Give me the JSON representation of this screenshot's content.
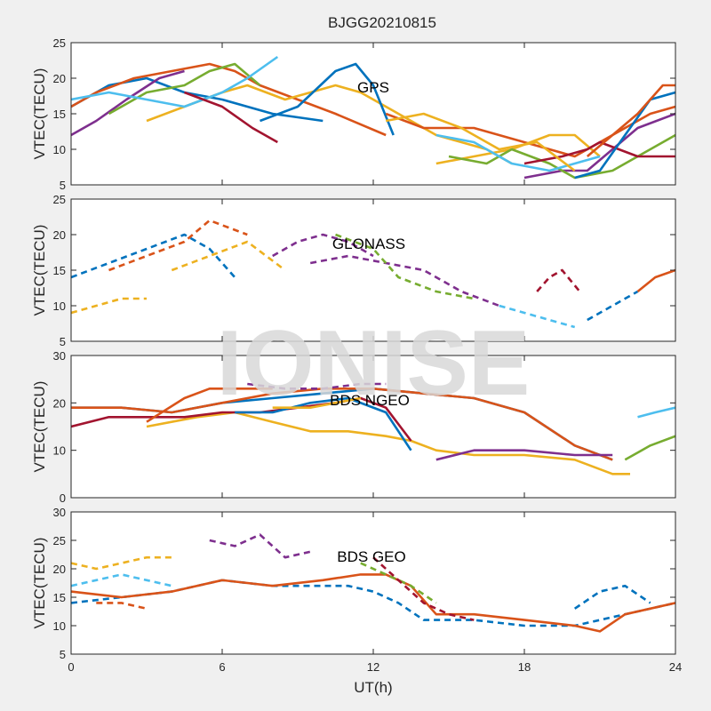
{
  "figure": {
    "title": "BJGG20210815",
    "watermark": "IONISE",
    "xlabel": "UT(h)",
    "x_ticks": [
      0,
      6,
      12,
      18,
      24
    ],
    "xlim": [
      0,
      24
    ]
  },
  "colors": {
    "background": "#f0f0f0",
    "axes_face": "#ffffff",
    "axis": "#262626",
    "watermark": "#d9d9d9",
    "palette": [
      "#0072bd",
      "#d95319",
      "#edb120",
      "#7e2f8e",
      "#77ac30",
      "#4dbeee",
      "#a2142f"
    ]
  },
  "chart_data": [
    {
      "type": "line",
      "title": "GPS",
      "ylabel": "VTEC(TECU)",
      "ylim": [
        5,
        25
      ],
      "y_ticks": [
        5,
        10,
        15,
        20,
        25
      ],
      "series": [
        {
          "x": [
            0,
            1.5,
            3,
            4.5,
            6,
            8,
            10
          ],
          "y": [
            16,
            19,
            20,
            18,
            17,
            15,
            14
          ]
        },
        {
          "x": [
            0,
            1,
            2.5,
            4,
            5.5,
            6.5,
            7.5,
            9,
            10.5,
            12.5
          ],
          "y": [
            16,
            18,
            20,
            21,
            22,
            21,
            19,
            17,
            15,
            12
          ]
        },
        {
          "x": [
            3,
            4.5,
            6,
            7,
            8.5,
            9.5,
            10.5,
            11.5,
            12.5,
            13.5,
            14.5,
            15.5,
            16.5,
            17.5
          ],
          "y": [
            14,
            16,
            18,
            19,
            17,
            18,
            19,
            18,
            16,
            14,
            12,
            11,
            10,
            8
          ]
        },
        {
          "x": [
            0,
            1,
            2.2,
            3.5,
            4.5
          ],
          "y": [
            12,
            14,
            17,
            20,
            21
          ]
        },
        {
          "x": [
            1.5,
            3,
            4.5,
            5.5,
            6.5,
            7.5
          ],
          "y": [
            15,
            18,
            19,
            21,
            22,
            19
          ]
        },
        {
          "x": [
            0,
            1.5,
            3,
            4.5,
            6,
            7,
            8.2
          ],
          "y": [
            17,
            18,
            17,
            16,
            18,
            20,
            23
          ]
        },
        {
          "x": [
            4.5,
            6,
            7.2,
            8.2
          ],
          "y": [
            18,
            16,
            13,
            11
          ]
        },
        {
          "x": [
            7.5,
            9,
            10.5,
            11.3,
            12,
            12.8
          ],
          "y": [
            14,
            16,
            21,
            22,
            19,
            12
          ]
        },
        {
          "x": [
            12.5,
            14,
            16,
            18,
            19,
            20,
            21,
            22,
            23,
            24
          ],
          "y": [
            15,
            13,
            13,
            11,
            10,
            9,
            11,
            13,
            15,
            16
          ]
        },
        {
          "x": [
            14.5,
            16,
            17.5,
            19,
            20,
            21
          ],
          "y": [
            8,
            9,
            10,
            12,
            12,
            9
          ]
        },
        {
          "x": [
            18,
            19.5,
            20.5,
            21.5,
            22.5,
            24
          ],
          "y": [
            6,
            7,
            7,
            10,
            13,
            15
          ]
        },
        {
          "x": [
            15,
            16.5,
            17.5,
            19,
            20,
            21.5,
            23,
            24
          ],
          "y": [
            9,
            8,
            10,
            8,
            6,
            7,
            10,
            12
          ]
        },
        {
          "x": [
            14.5,
            16,
            17.5,
            19,
            20,
            21
          ],
          "y": [
            12,
            11,
            8,
            7,
            8,
            9
          ]
        },
        {
          "x": [
            18,
            19.5,
            20.5,
            21,
            22.5,
            24
          ],
          "y": [
            8,
            9,
            10,
            11,
            9,
            9
          ]
        },
        {
          "x": [
            20,
            21,
            22,
            23,
            24
          ],
          "y": [
            6,
            7,
            12,
            17,
            18
          ]
        },
        {
          "x": [
            20.5,
            21.5,
            22.5,
            23.5,
            24
          ],
          "y": [
            9,
            12,
            15,
            19,
            19
          ]
        },
        {
          "x": [
            12.5,
            14,
            15.5,
            17,
            18.5,
            20
          ],
          "y": [
            14,
            15,
            13,
            10,
            11,
            7
          ]
        }
      ]
    },
    {
      "type": "line",
      "title": "GLONASS",
      "ylabel": "VTEC(TECU)",
      "ylim": [
        5,
        25
      ],
      "y_ticks": [
        5,
        10,
        15,
        20,
        25
      ],
      "series": [
        {
          "x": [
            0,
            1.5,
            3,
            4.5,
            5.5,
            6.5
          ],
          "y": [
            14,
            16,
            18,
            20,
            18,
            14
          ],
          "dashed": true
        },
        {
          "x": [
            1.5,
            3,
            4.5,
            5.5,
            7
          ],
          "y": [
            15,
            17,
            19,
            22,
            20
          ],
          "dashed": true
        },
        {
          "x": [
            4,
            5.5,
            7,
            8.5
          ],
          "y": [
            15,
            17,
            19,
            15
          ],
          "dashed": true
        },
        {
          "x": [
            9.5,
            11,
            12.5,
            14,
            15.5,
            17
          ],
          "y": [
            16,
            17,
            16,
            15,
            12,
            10
          ],
          "dashed": true
        },
        {
          "x": [
            10.5,
            12,
            13,
            14.5,
            16
          ],
          "y": [
            20,
            18,
            14,
            12,
            11
          ],
          "dashed": true
        },
        {
          "x": [
            17,
            18,
            19,
            20
          ],
          "y": [
            10,
            9,
            8,
            7
          ],
          "dashed": true
        },
        {
          "x": [
            18.5,
            19,
            19.5,
            20.2
          ],
          "y": [
            12,
            14,
            15,
            12
          ],
          "dashed": true
        },
        {
          "x": [
            20.5,
            21.5,
            22.5
          ],
          "y": [
            8,
            10,
            12
          ],
          "dashed": true
        },
        {
          "x": [
            22.5,
            23.2,
            24
          ],
          "y": [
            12,
            14,
            15
          ]
        },
        {
          "x": [
            0,
            1,
            2,
            3
          ],
          "y": [
            9,
            10,
            11,
            11
          ],
          "dashed": true
        },
        {
          "x": [
            8,
            9,
            10,
            11,
            12
          ],
          "y": [
            17,
            19,
            20,
            19,
            17
          ],
          "dashed": true
        }
      ]
    },
    {
      "type": "line",
      "title": "BDS NGEO",
      "ylabel": "VTEC(TECU)",
      "ylim": [
        0,
        30
      ],
      "y_ticks": [
        0,
        10,
        20,
        30
      ],
      "series": [
        {
          "x": [
            0,
            2,
            4,
            6,
            8,
            10,
            12,
            14,
            16,
            18,
            20,
            21.5
          ],
          "y": [
            19,
            19,
            18,
            20,
            21,
            22,
            23,
            22,
            21,
            18,
            11,
            8
          ]
        },
        {
          "x": [
            0,
            2,
            4,
            6,
            8,
            10,
            12,
            14,
            16,
            18,
            20,
            21.5
          ],
          "y": [
            19,
            19,
            18,
            20,
            22,
            23,
            23,
            22,
            21,
            18,
            11,
            8
          ]
        },
        {
          "x": [
            3,
            5,
            6.5,
            8,
            9.5,
            11,
            12.5,
            13.5,
            14.5,
            16,
            18,
            20,
            21.5,
            22.2
          ],
          "y": [
            15,
            17,
            18,
            16,
            14,
            14,
            13,
            12,
            10,
            9,
            9,
            8,
            5,
            5
          ]
        },
        {
          "x": [
            14.5,
            16,
            18,
            20,
            21.5
          ],
          "y": [
            8,
            10,
            10,
            9,
            9
          ]
        },
        {
          "x": [
            22,
            23,
            24
          ],
          "y": [
            8,
            11,
            13
          ]
        },
        {
          "x": [
            22.5,
            23.2,
            24
          ],
          "y": [
            17,
            18,
            19
          ]
        },
        {
          "x": [
            0,
            1.5,
            3,
            4.5,
            6,
            7.5,
            9,
            10.5,
            11.5,
            12.5,
            13.5
          ],
          "y": [
            15,
            17,
            17,
            17,
            18,
            18,
            19,
            20,
            21,
            19,
            12
          ]
        },
        {
          "x": [
            6.5,
            8,
            9.5,
            11,
            12.5,
            13.5
          ],
          "y": [
            18,
            18,
            20,
            21,
            18,
            10
          ]
        },
        {
          "x": [
            3,
            4.5,
            5.5,
            6.5,
            8
          ],
          "y": [
            16,
            21,
            23,
            23,
            23
          ]
        },
        {
          "x": [
            8,
            9.5,
            10.5,
            11.5
          ],
          "y": [
            19,
            19,
            20,
            21
          ]
        },
        {
          "x": [
            7,
            8.5,
            10,
            11.5,
            12.5
          ],
          "y": [
            24,
            23,
            23,
            24,
            24
          ],
          "dashed": true
        }
      ]
    },
    {
      "type": "line",
      "title": "BDS GEO",
      "ylabel": "VTEC(TECU)",
      "ylim": [
        5,
        30
      ],
      "y_ticks": [
        5,
        10,
        15,
        20,
        25,
        30
      ],
      "series": [
        {
          "x": [
            0,
            2,
            4,
            6,
            8,
            10,
            11,
            12,
            13,
            14,
            16,
            18,
            20,
            22,
            24
          ],
          "y": [
            14,
            15,
            16,
            18,
            17,
            17,
            17,
            16,
            14,
            11,
            11,
            10,
            10,
            12,
            14
          ],
          "dashed": true
        },
        {
          "x": [
            0,
            2,
            4,
            6,
            8,
            10,
            11.5,
            12.5,
            13.5,
            14.5,
            16,
            18,
            20,
            21,
            22,
            24
          ],
          "y": [
            16,
            15,
            16,
            18,
            17,
            18,
            19,
            19,
            17,
            12,
            12,
            11,
            10,
            9,
            12,
            14
          ]
        },
        {
          "x": [
            0,
            1,
            2,
            3,
            4
          ],
          "y": [
            21,
            20,
            21,
            22,
            22
          ],
          "dashed": true
        },
        {
          "x": [
            5.5,
            6.5,
            7.5,
            8.5,
            9.5
          ],
          "y": [
            25,
            24,
            26,
            22,
            23
          ],
          "dashed": true
        },
        {
          "x": [
            11.5,
            12.5,
            13.5,
            14.5
          ],
          "y": [
            21,
            19,
            17,
            14
          ],
          "dashed": true
        },
        {
          "x": [
            0,
            1,
            2,
            3,
            4
          ],
          "y": [
            17,
            18,
            19,
            18,
            17
          ],
          "dashed": true
        },
        {
          "x": [
            12,
            13,
            14,
            15,
            16
          ],
          "y": [
            22,
            18,
            14,
            12,
            11
          ],
          "dashed": true
        },
        {
          "x": [
            20,
            21,
            22,
            23
          ],
          "y": [
            13,
            16,
            17,
            14
          ],
          "dashed": true
        },
        {
          "x": [
            1,
            2,
            3
          ],
          "y": [
            14,
            14,
            13
          ],
          "dashed": true
        }
      ]
    }
  ]
}
